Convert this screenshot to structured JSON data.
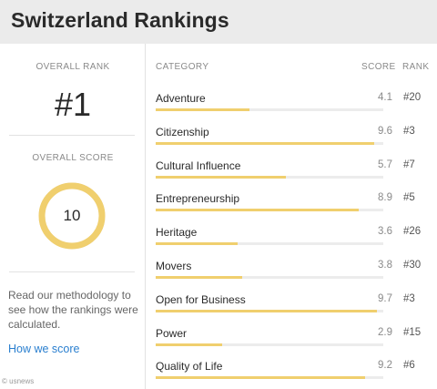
{
  "title": "Switzerland Rankings",
  "left": {
    "overall_rank_label": "OVERALL RANK",
    "overall_rank_value": "#1",
    "overall_score_label": "OVERALL SCORE",
    "overall_score_value": "10",
    "overall_score_fraction": 1.0,
    "methodology_text": "Read our methodology to see how the rankings were calculated.",
    "how_link": "How we score"
  },
  "table": {
    "headers": {
      "category": "CATEGORY",
      "score": "SCORE",
      "rank": "RANK"
    },
    "rows": [
      {
        "category": "Adventure",
        "score": "4.1",
        "rank": "#20"
      },
      {
        "category": "Citizenship",
        "score": "9.6",
        "rank": "#3"
      },
      {
        "category": "Cultural Influence",
        "score": "5.7",
        "rank": "#7"
      },
      {
        "category": "Entrepreneurship",
        "score": "8.9",
        "rank": "#5"
      },
      {
        "category": "Heritage",
        "score": "3.6",
        "rank": "#26"
      },
      {
        "category": "Movers",
        "score": "3.8",
        "rank": "#30"
      },
      {
        "category": "Open for Business",
        "score": "9.7",
        "rank": "#3"
      },
      {
        "category": "Power",
        "score": "2.9",
        "rank": "#15"
      },
      {
        "category": "Quality of Life",
        "score": "9.2",
        "rank": "#6"
      }
    ],
    "score_max": 10
  },
  "footer": "© usnews",
  "colors": {
    "accent": "#f0cf6e",
    "link": "#2a7fcf",
    "header_bg": "#ebebeb"
  }
}
